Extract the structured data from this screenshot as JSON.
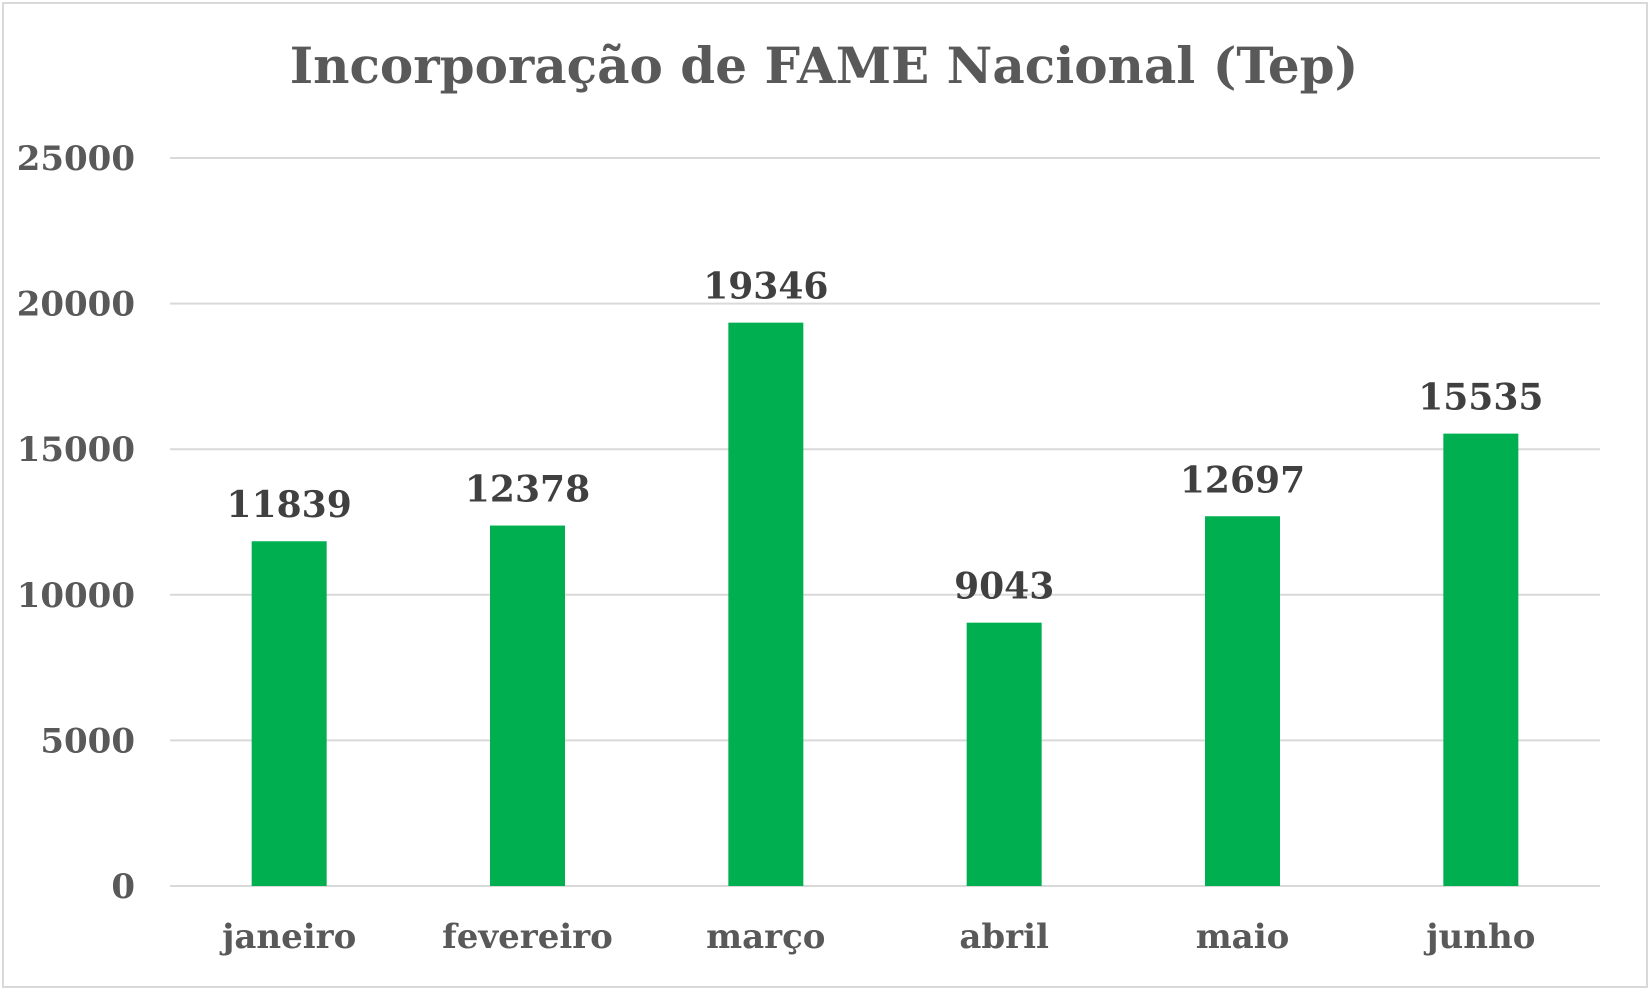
{
  "chart_data": {
    "type": "bar",
    "title": "Incorporação de FAME Nacional (Tep)",
    "xlabel": "",
    "ylabel": "",
    "categories": [
      "janeiro",
      "fevereiro",
      "março",
      "abril",
      "maio",
      "junho"
    ],
    "values": [
      11839,
      12378,
      19346,
      9043,
      12697,
      15535
    ],
    "data_labels": [
      "11839",
      "12378",
      "19346",
      "9043",
      "12697",
      "15535"
    ],
    "ylim": [
      0,
      25000
    ],
    "yticks": [
      0,
      5000,
      10000,
      15000,
      20000,
      25000
    ],
    "ytick_labels": [
      "0",
      "5000",
      "10000",
      "15000",
      "20000",
      "25000"
    ],
    "grid": true,
    "legend": "none",
    "colors": {
      "bar": "#00b050",
      "grid": "#d9d9d9",
      "axis_text": "#595959",
      "data_label_text": "#404040"
    }
  }
}
